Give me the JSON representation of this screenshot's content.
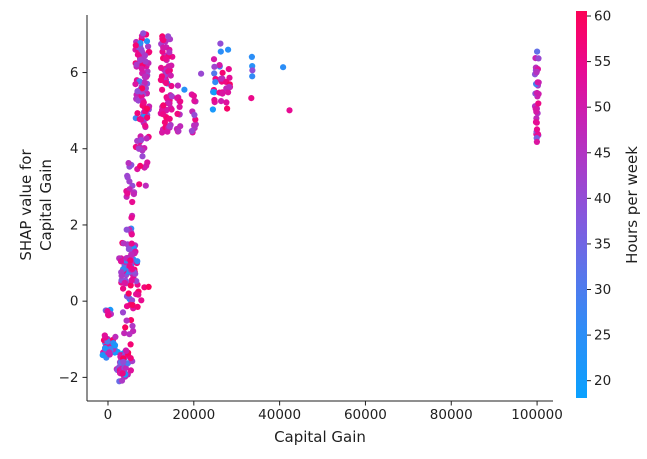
{
  "figure": {
    "xlabel": "Capital Gain",
    "ylabel_line1": "SHAP value for",
    "ylabel_line2": "Capital Gain",
    "colorbar_label": "Hours per week"
  },
  "chart_data": {
    "type": "scatter",
    "title": "",
    "xlabel": "Capital Gain",
    "ylabel": "SHAP value for Capital Gain",
    "grid": false,
    "xlim": [
      -4890,
      103710
    ],
    "ylim": [
      -2.62,
      7.51
    ],
    "x_ticks": [
      0,
      20000,
      40000,
      60000,
      80000,
      100000
    ],
    "x_tick_labels": [
      "0",
      "20000",
      "40000",
      "60000",
      "80000",
      "100000"
    ],
    "y_ticks": [
      -2,
      0,
      2,
      4,
      6
    ],
    "y_tick_labels": [
      "−2",
      "0",
      "2",
      "4",
      "6"
    ],
    "colorbar": {
      "label": "Hours per week",
      "vmin": 18.1,
      "vmax": 60.55,
      "ticks": [
        20,
        25,
        30,
        35,
        40,
        45,
        50,
        55,
        60
      ]
    },
    "colormap_stops": [
      {
        "t": 0.0,
        "c": "#0aa1fe"
      },
      {
        "t": 0.18,
        "c": "#2f8cf6"
      },
      {
        "t": 0.33,
        "c": "#5c74ea"
      },
      {
        "t": 0.47,
        "c": "#8657dd"
      },
      {
        "t": 0.6,
        "c": "#a93cc9"
      },
      {
        "t": 0.72,
        "c": "#c722b4"
      },
      {
        "t": 0.84,
        "c": "#e60c95"
      },
      {
        "t": 0.93,
        "c": "#f50473"
      },
      {
        "t": 1.0,
        "c": "#fb0356"
      }
    ],
    "point_radius": 3.1,
    "clusters": [
      {
        "name": "near-zero-blob",
        "x": [
          -1100,
          1100
        ],
        "y": [
          -0.45,
          -0.12
        ],
        "n": 9,
        "blue_frac": 0.15,
        "hue": [
          40,
          57
        ],
        "shape": "blob"
      },
      {
        "name": "neg-blue-cluster",
        "x": [
          -1900,
          2400
        ],
        "y": [
          -1.62,
          -0.82
        ],
        "n": 40,
        "blue_frac": 0.45,
        "hue": [
          40,
          60
        ],
        "shape": "blob"
      },
      {
        "name": "neg-tail",
        "x": [
          1800,
          4900
        ],
        "y": [
          -2.17,
          -1.25
        ],
        "n": 45,
        "blue_frac": 0.22,
        "hue": [
          38,
          60
        ],
        "shape": "blob"
      },
      {
        "name": "riser-low",
        "x": [
          3400,
          5900
        ],
        "y": [
          -1.9,
          0.15
        ],
        "n": 28,
        "blue_frac": 0.18,
        "hue": [
          38,
          60
        ],
        "shape": "band"
      },
      {
        "name": "mid-blob",
        "x": [
          2400,
          7300
        ],
        "y": [
          0.25,
          1.65
        ],
        "n": 80,
        "blue_frac": 0.16,
        "hue": [
          38,
          60
        ],
        "shape": "blob"
      },
      {
        "name": "scattered-reds",
        "x": [
          4400,
          9600
        ],
        "y": [
          -0.28,
          0.6
        ],
        "n": 11,
        "blue_frac": 0.0,
        "hue": [
          50,
          60
        ],
        "shape": "band"
      },
      {
        "name": "riser-mid",
        "x": [
          4300,
          6100
        ],
        "y": [
          1.7,
          3.05
        ],
        "n": 16,
        "blue_frac": 0.08,
        "hue": [
          38,
          55
        ],
        "shape": "band"
      },
      {
        "name": "riser-upper",
        "x": [
          4400,
          5900
        ],
        "y": [
          3.1,
          3.85
        ],
        "n": 6,
        "blue_frac": 0.0,
        "hue": [
          38,
          50
        ],
        "shape": "band"
      },
      {
        "name": "band-8k",
        "x": [
          6400,
          9600
        ],
        "y": [
          3.95,
          7.0
        ],
        "n": 100,
        "blue_frac": 0.07,
        "hue": [
          38,
          60
        ],
        "shape": "band"
      },
      {
        "name": "band-8k-tail",
        "x": [
          6700,
          9300
        ],
        "y": [
          2.95,
          3.9
        ],
        "n": 7,
        "blue_frac": 0.1,
        "hue": [
          40,
          58
        ],
        "shape": "band"
      },
      {
        "name": "band-14k",
        "x": [
          12300,
          15000
        ],
        "y": [
          4.35,
          6.95
        ],
        "n": 68,
        "blue_frac": 0.05,
        "hue": [
          42,
          60
        ],
        "shape": "band"
      },
      {
        "name": "band-16k",
        "x": [
          15900,
          17300
        ],
        "y": [
          4.45,
          5.75
        ],
        "n": 12,
        "blue_frac": 0.0,
        "hue": [
          42,
          58
        ],
        "shape": "band"
      },
      {
        "name": "band-20k",
        "x": [
          19300,
          20500
        ],
        "y": [
          4.4,
          5.45
        ],
        "n": 13,
        "blue_frac": 0.05,
        "hue": [
          40,
          56
        ],
        "shape": "band"
      },
      {
        "name": "band-25k",
        "x": [
          24400,
          25300
        ],
        "y": [
          4.85,
          6.1
        ],
        "n": 9,
        "blue_frac": 0.1,
        "hue": [
          46,
          60
        ],
        "shape": "band"
      },
      {
        "name": "band-26k",
        "x": [
          25900,
          26800
        ],
        "y": [
          4.8,
          6.3
        ],
        "n": 11,
        "blue_frac": 0.08,
        "hue": [
          46,
          60
        ],
        "shape": "band"
      },
      {
        "name": "band-28k",
        "x": [
          27500,
          28700
        ],
        "y": [
          4.9,
          6.2
        ],
        "n": 10,
        "blue_frac": 0.08,
        "hue": [
          46,
          60
        ],
        "shape": "band"
      },
      {
        "name": "band-100k",
        "x": [
          99500,
          100400
        ],
        "y": [
          4.35,
          6.5
        ],
        "n": 30,
        "blue_frac": 0.06,
        "hue": [
          38,
          58
        ],
        "shape": "band"
      }
    ],
    "special_points": [
      {
        "x": 8200,
        "y": 7.03,
        "hue": 40
      },
      {
        "x": 14000,
        "y": 6.95,
        "hue": 41
      },
      {
        "x": 7500,
        "y": 3.55,
        "hue": 58
      },
      {
        "x": 17800,
        "y": 5.55,
        "hue": 24
      },
      {
        "x": 21700,
        "y": 5.97,
        "hue": 41
      },
      {
        "x": 24700,
        "y": 6.35,
        "hue": 51
      },
      {
        "x": 24800,
        "y": 6.15,
        "hue": 42
      },
      {
        "x": 25000,
        "y": 5.75,
        "hue": 26
      },
      {
        "x": 26200,
        "y": 6.76,
        "hue": 40
      },
      {
        "x": 26300,
        "y": 6.55,
        "hue": 25
      },
      {
        "x": 28000,
        "y": 6.6,
        "hue": 24
      },
      {
        "x": 33550,
        "y": 6.41,
        "hue": 25
      },
      {
        "x": 33600,
        "y": 6.17,
        "hue": 24
      },
      {
        "x": 33650,
        "y": 6.06,
        "hue": 40
      },
      {
        "x": 33600,
        "y": 5.9,
        "hue": 26
      },
      {
        "x": 33400,
        "y": 5.33,
        "hue": 55
      },
      {
        "x": 40800,
        "y": 6.14,
        "hue": 25
      },
      {
        "x": 42300,
        "y": 5.01,
        "hue": 54
      },
      {
        "x": 100000,
        "y": 6.55,
        "hue": 33
      },
      {
        "x": 99900,
        "y": 4.28,
        "hue": 36
      },
      {
        "x": 99950,
        "y": 4.18,
        "hue": 52
      }
    ]
  }
}
